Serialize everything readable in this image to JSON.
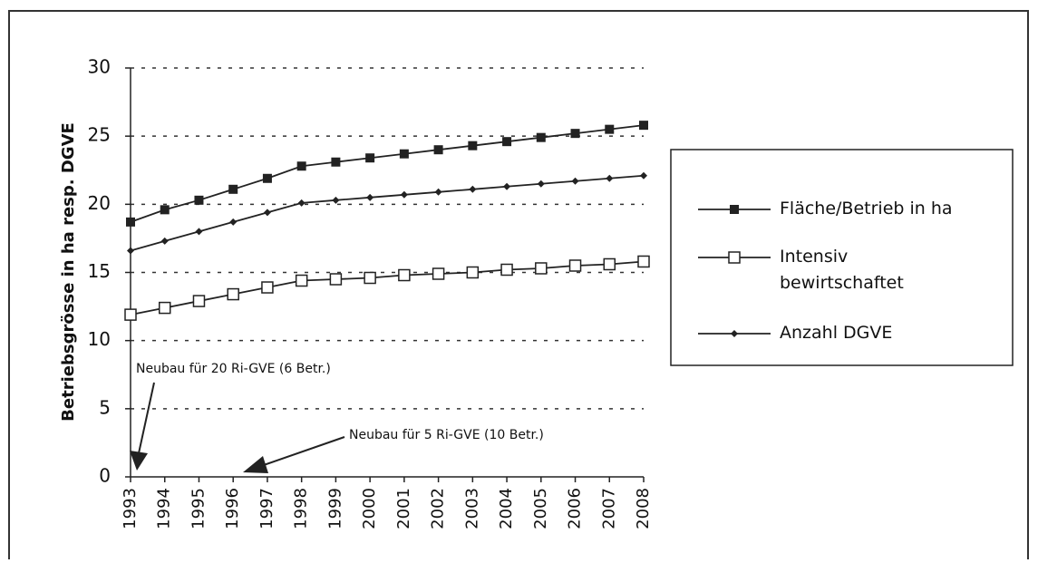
{
  "chart_data": {
    "type": "line",
    "y_axis_label": "Betriebsgrösse in ha resp. DGVE",
    "categories": [
      "1993",
      "1994",
      "1995",
      "1996",
      "1997",
      "1998",
      "1999",
      "2000",
      "2001",
      "2002",
      "2003",
      "2004",
      "2005",
      "2006",
      "2007",
      "2008"
    ],
    "series": [
      {
        "name": "Fläche/Betrieb in ha",
        "color": "#222222",
        "marker": "square",
        "values": [
          18.7,
          19.6,
          20.3,
          21.1,
          21.9,
          22.8,
          23.1,
          23.4,
          23.7,
          24.0,
          24.3,
          24.6,
          24.9,
          25.2,
          25.5,
          25.8
        ]
      },
      {
        "name": "Intensiv bewirtschaftet",
        "color": "#222222",
        "marker": "open-square",
        "values": [
          11.9,
          12.4,
          12.9,
          13.4,
          13.9,
          14.4,
          14.5,
          14.6,
          14.8,
          14.9,
          15.0,
          15.2,
          15.3,
          15.5,
          15.6,
          15.8
        ]
      },
      {
        "name": "Anzahl DGVE",
        "color": "#222222",
        "marker": "diamond",
        "values": [
          16.6,
          17.3,
          18.0,
          18.7,
          19.4,
          20.1,
          20.3,
          20.5,
          20.7,
          20.9,
          21.1,
          21.3,
          21.5,
          21.7,
          21.9,
          22.1
        ]
      }
    ],
    "ylim": [
      0,
      30
    ],
    "yticks": [
      0,
      5,
      10,
      15,
      20,
      25,
      30
    ],
    "grid": true,
    "legend": "right",
    "annotations": [
      "Neubau für 20 Ri-GVE (6 Betr.)",
      "Neubau für 5 Ri-GVE (10 Betr.)"
    ]
  }
}
